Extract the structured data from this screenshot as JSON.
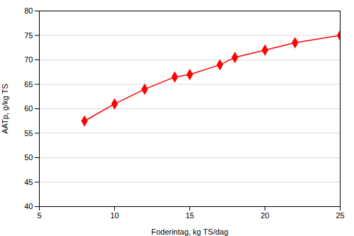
{
  "chart_data": {
    "type": "line",
    "x": [
      8,
      10,
      12,
      14,
      15,
      17,
      18,
      20,
      22,
      25
    ],
    "values": [
      57.5,
      61.0,
      64.0,
      66.5,
      67.0,
      69.0,
      70.5,
      72.0,
      73.5,
      75.0
    ],
    "color": "#FF0000",
    "marker": "diamond",
    "xlabel": "Foderintag, kg TS/dag",
    "ylabel": "AATp, g/kg TS",
    "xlim": [
      5,
      25
    ],
    "ylim": [
      40,
      80
    ],
    "xticks": [
      5,
      10,
      15,
      20,
      25
    ],
    "yticks": [
      40,
      45,
      50,
      55,
      60,
      65,
      70,
      75,
      80
    ],
    "grid": true
  }
}
